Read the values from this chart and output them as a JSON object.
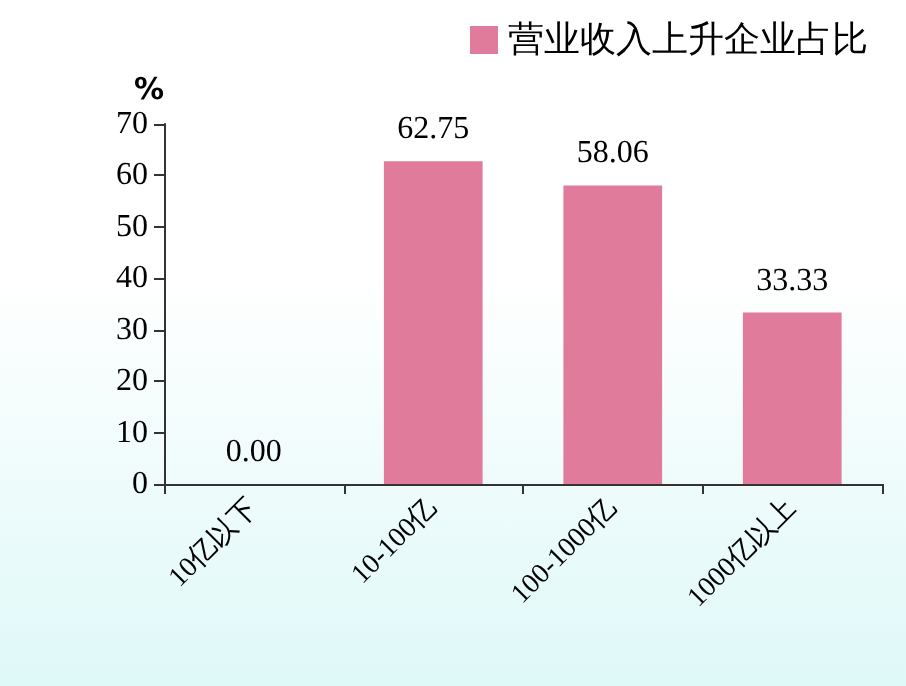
{
  "chart_data": {
    "type": "bar",
    "ylabel": "%",
    "categories": [
      "10亿以下",
      "10-100亿",
      "100-1000亿",
      "1000亿以上"
    ],
    "series": [
      {
        "name": "营业收入上升企业占比",
        "color": "#e07b9b",
        "values": [
          0.0,
          62.75,
          58.06,
          33.33
        ]
      }
    ],
    "value_labels": [
      "0.00",
      "62.75",
      "58.06",
      "33.33"
    ],
    "ylim": [
      0,
      70
    ],
    "yticks": [
      0,
      10,
      20,
      30,
      40,
      50,
      60,
      70
    ],
    "grid": false,
    "legend": "top right"
  }
}
